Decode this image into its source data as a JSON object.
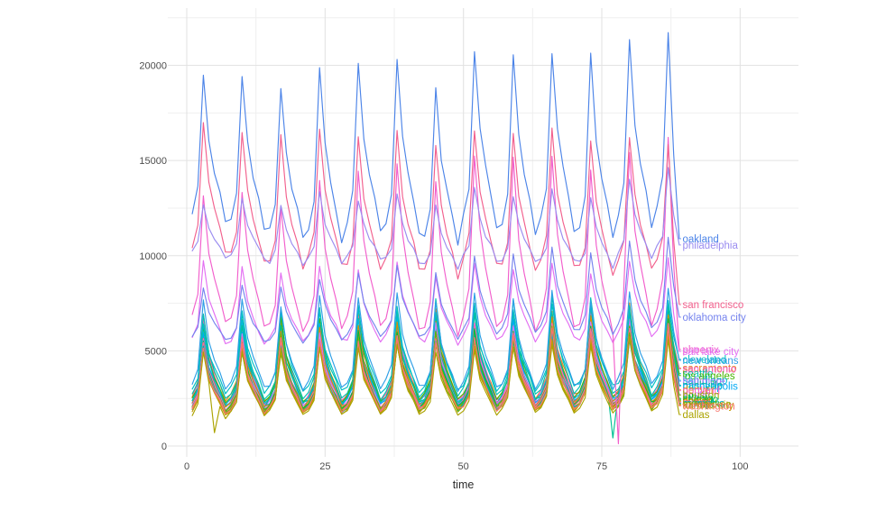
{
  "chart_data": {
    "type": "line",
    "title": "",
    "xlabel": "time",
    "ylabel": "",
    "x_ticks": [
      0,
      25,
      50,
      75,
      100
    ],
    "y_ticks": [
      0,
      5000,
      10000,
      15000,
      20000
    ],
    "x_minor_ticks": [
      12.5,
      37.5,
      62.5,
      87.5
    ],
    "y_minor_ticks": [
      2500,
      7500,
      12500,
      17500,
      22500
    ],
    "x_axis_range": [
      0,
      100
    ],
    "y_axis_range": [
      0,
      22500
    ],
    "time_domain": [
      1,
      89
    ],
    "grid": "major_and_minor_light_gray",
    "legend_position": "labels-at-line-ends",
    "weekly_shape": [
      0.06,
      0.22,
      1.0,
      0.55,
      0.34,
      0.18,
      0.0
    ],
    "axis_text_color": "#4d4d4d",
    "axis_title_color": "#2b2b2b",
    "grid_major_color": "#e3e3e3",
    "grid_minor_color": "#efefef",
    "series": [
      {
        "name": "sacramento",
        "color": "#E7861B",
        "end": 4100,
        "peak_range": [
          6600,
          7400
        ],
        "trough_range": [
          2300,
          2700
        ],
        "legible": false
      },
      {
        "name": "san antonio",
        "color": "#F45FC3",
        "end": 4050,
        "peak_range": [
          6400,
          7300
        ],
        "trough_range": [
          2200,
          2600
        ],
        "legible": false
      },
      {
        "name": "seattle",
        "color": "#00C1B2",
        "end": 3800,
        "peak_range": [
          6800,
          7800
        ],
        "trough_range": [
          2400,
          2800
        ],
        "legible": false
      },
      {
        "name": "los angeles",
        "color": "#45B500",
        "end": 3700,
        "peak_range": [
          6300,
          7200
        ],
        "trough_range": [
          2200,
          2600
        ],
        "legible": false
      },
      {
        "name": "san diego",
        "color": "#00B8E0",
        "end": 3450,
        "peak_range": [
          6200,
          7000
        ],
        "trough_range": [
          2100,
          2500
        ],
        "legible": false
      },
      {
        "name": "baltimore",
        "color": "#B07AF5",
        "end": 3400,
        "peak_range": [
          6000,
          6900
        ],
        "trough_range": [
          2000,
          2400
        ],
        "legible": false
      },
      {
        "name": "nashville",
        "color": "#00C094",
        "end": 3200,
        "peak_range": [
          6400,
          7200
        ],
        "trough_range": [
          2100,
          2500
        ],
        "legible": false,
        "dips": {
          "77": 420
        }
      },
      {
        "name": "minneapolis",
        "color": "#00A9F4",
        "end": 3150,
        "peak_range": [
          5900,
          6800
        ],
        "trough_range": [
          2000,
          2400
        ],
        "legible": false
      },
      {
        "name": "denver",
        "color": "#DE8C00",
        "end": 2950,
        "peak_range": [
          5800,
          6700
        ],
        "trough_range": [
          1950,
          2350
        ],
        "legible": false
      },
      {
        "name": "portland",
        "color": "#FF61C7",
        "end": 2900,
        "peak_range": [
          5700,
          6600
        ],
        "trough_range": [
          1900,
          2300
        ],
        "legible": false
      },
      {
        "name": "austin",
        "color": "#C77CFF",
        "end": 2700,
        "peak_range": [
          5600,
          6500
        ],
        "trough_range": [
          1900,
          2300
        ],
        "legible": false
      },
      {
        "name": "houston",
        "color": "#93AA00",
        "end": 2680,
        "peak_range": [
          5500,
          6400
        ],
        "trough_range": [
          1850,
          2250
        ],
        "legible": false
      },
      {
        "name": "atlanta",
        "color": "#00BA38",
        "end": 2500,
        "peak_range": [
          5400,
          6300
        ],
        "trough_range": [
          1800,
          2200
        ],
        "legible": false
      },
      {
        "name": "chicago",
        "color": "#00BE67",
        "end": 2450,
        "peak_range": [
          5600,
          6200
        ],
        "trough_range": [
          1850,
          2200
        ],
        "legible": false
      },
      {
        "name": "boston",
        "color": "#6BB100",
        "end": 2400,
        "peak_range": [
          5300,
          6100
        ],
        "trough_range": [
          1800,
          2150
        ],
        "legible": false
      },
      {
        "name": "detroit",
        "color": "#D39200",
        "end": 2350,
        "peak_range": [
          5200,
          6000
        ],
        "trough_range": [
          1750,
          2100
        ],
        "legible": false
      },
      {
        "name": "miami",
        "color": "#FF6B96",
        "end": 2300,
        "peak_range": [
          5400,
          6200
        ],
        "trough_range": [
          1800,
          2150
        ],
        "legible": false
      },
      {
        "name": "memphis",
        "color": "#00ACC2",
        "end": 2250,
        "peak_range": [
          5100,
          5900
        ],
        "trough_range": [
          1700,
          2050
        ],
        "legible": false
      },
      {
        "name": "milwaukee",
        "color": "#7CAE00",
        "end": 2200,
        "peak_range": [
          5000,
          5800
        ],
        "trough_range": [
          1700,
          2000
        ],
        "legible": false
      },
      {
        "name": "kansas city",
        "color": "#C49A00",
        "end": 2150,
        "peak_range": [
          4900,
          5700
        ],
        "trough_range": [
          1650,
          2000
        ],
        "legible": false
      },
      {
        "name": "washington",
        "color": "#F8766D",
        "end": 2100,
        "peak_range": [
          5200,
          6000
        ],
        "trough_range": [
          1700,
          2050
        ],
        "legible": true
      },
      {
        "name": "dallas",
        "color": "#ABA300",
        "end": 1650,
        "peak_range": [
          4800,
          5600
        ],
        "trough_range": [
          1500,
          1900
        ],
        "legible": true,
        "dips": {
          "5": 700
        }
      },
      {
        "name": "cleveland",
        "color": "#00BFC4",
        "end": 4550,
        "peak_range": [
          6800,
          7600
        ],
        "trough_range": [
          2700,
          3100
        ],
        "legible": false
      },
      {
        "name": "new orleans",
        "color": "#2E9FE6",
        "end": 4500,
        "legible": true,
        "peaks": [
          7600,
          7800,
          7400,
          7900,
          7700,
          8000,
          7500,
          8000,
          7800,
          8100,
          7700,
          8100,
          8300
        ],
        "troughs": [
          3000,
          3100,
          2900,
          3100,
          3000,
          3200,
          2900,
          3100,
          3000,
          3200,
          3000,
          3300,
          3400
        ]
      },
      {
        "name": "salt lake city",
        "color": "#E36EF2",
        "end": 4970,
        "legible": true,
        "peaks": [
          9700,
          9400,
          9100,
          9500,
          9200,
          9600,
          8900,
          9500,
          9300,
          9600,
          9100,
          9700,
          9900
        ],
        "troughs": [
          5400,
          5300,
          5500,
          5600,
          5400,
          5700,
          5300,
          5600,
          5500,
          5700,
          5400,
          5800,
          5900
        ]
      },
      {
        "name": "phoenix",
        "color": "#F25ECC",
        "end": 5070,
        "legible": false,
        "dips": {
          "78": 120
        },
        "peaks": [
          13000,
          13400,
          12600,
          14000,
          14500,
          15000,
          13800,
          15300,
          15000,
          15300,
          14400,
          15500,
          16200
        ],
        "troughs": [
          6500,
          6300,
          6000,
          6200,
          6400,
          6100,
          5800,
          6300,
          6000,
          6200,
          5900,
          6400,
          6600
        ]
      },
      {
        "name": "oklahoma city",
        "color": "#7583EE",
        "end": 6770,
        "legible": true,
        "peaks": [
          8200,
          8500,
          8300,
          8800,
          9200,
          9500,
          9000,
          9900,
          10100,
          10400,
          10200,
          10700,
          10850
        ],
        "troughs": [
          5600,
          5500,
          5400,
          5600,
          5700,
          5800,
          5600,
          5900,
          6000,
          6100,
          5900,
          6200,
          6300
        ]
      },
      {
        "name": "san francisco",
        "color": "#F2608D",
        "end": 7430,
        "legible": true,
        "peaks": [
          17050,
          16500,
          16300,
          16800,
          16300,
          16400,
          15900,
          16600,
          16300,
          16500,
          16000,
          16300,
          15860
        ],
        "troughs": [
          10100,
          9700,
          9300,
          9600,
          9200,
          9400,
          8850,
          9500,
          9200,
          9400,
          9000,
          9300,
          9500
        ]
      },
      {
        "name": "philadelphia",
        "color": "#9A8CF0",
        "end": 10560,
        "legible": true,
        "peaks": [
          12800,
          13100,
          12700,
          13300,
          13000,
          13400,
          12600,
          13500,
          13200,
          13400,
          13100,
          14000,
          14500
        ],
        "troughs": [
          10000,
          9800,
          9500,
          9700,
          9900,
          9600,
          9300,
          9800,
          9600,
          9700,
          9400,
          9900,
          10200
        ]
      },
      {
        "name": "oakland",
        "color": "#4C84E8",
        "end": 10890,
        "legible": true,
        "peaks": [
          19270,
          19400,
          18800,
          19790,
          20300,
          20400,
          18850,
          20740,
          20600,
          20740,
          20400,
          21160,
          21920
        ],
        "troughs": [
          11900,
          11500,
          11000,
          10800,
          11300,
          11100,
          10600,
          11500,
          11200,
          11400,
          10900,
          11600,
          12000
        ]
      }
    ]
  }
}
